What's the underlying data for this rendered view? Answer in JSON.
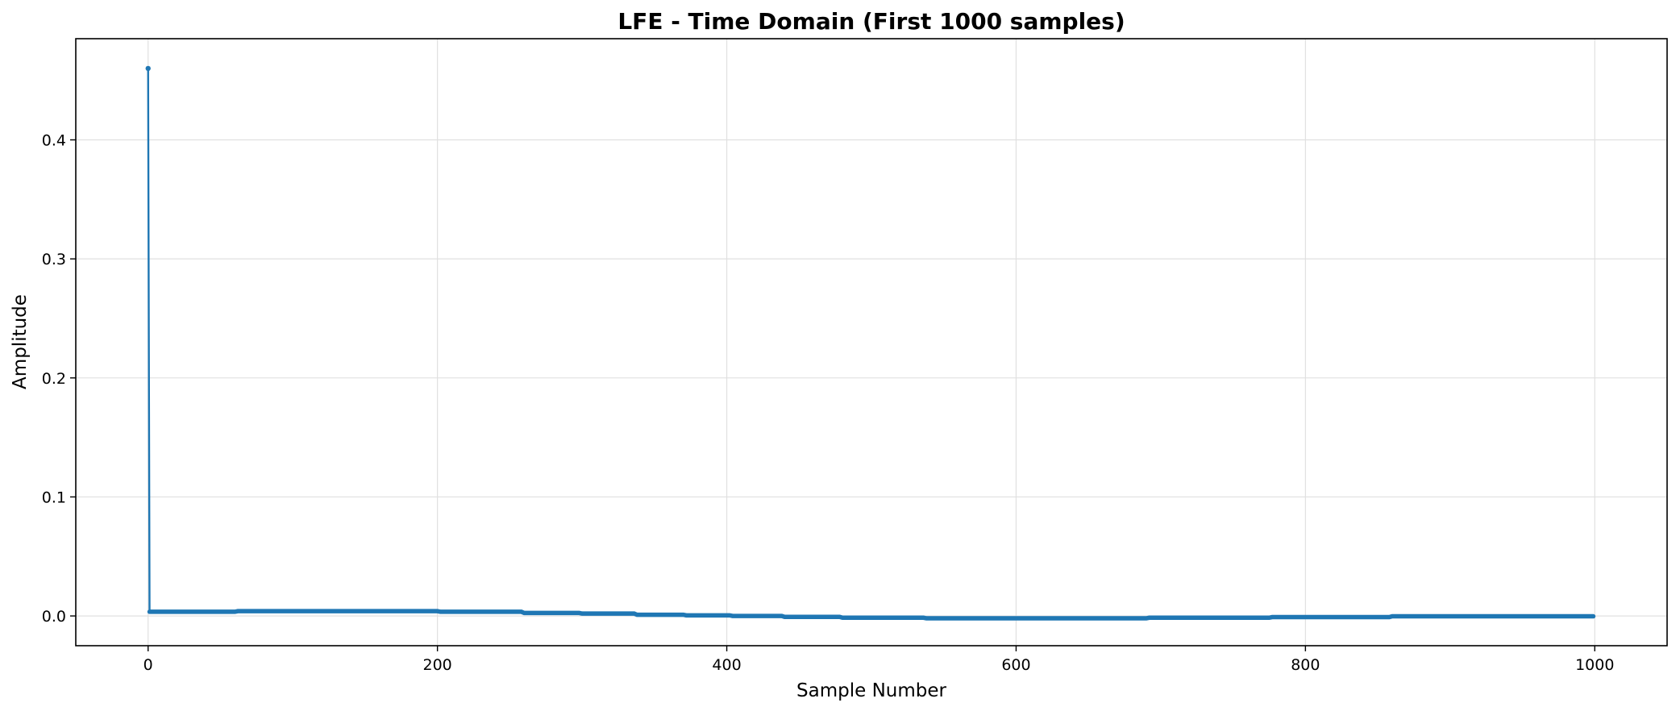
{
  "chart_data": {
    "type": "line",
    "title": "LFE - Time Domain (First 1000 samples)",
    "xlabel": "Sample Number",
    "ylabel": "Amplitude",
    "xlim": [
      -50,
      1050
    ],
    "ylim": [
      -0.025,
      0.485
    ],
    "xticks": [
      0,
      200,
      400,
      600,
      800,
      1000
    ],
    "yticks": [
      0.0,
      0.1,
      0.2,
      0.3,
      0.4
    ],
    "xtick_labels": [
      "0",
      "200",
      "400",
      "600",
      "800",
      "1000"
    ],
    "ytick_labels": [
      "0.0",
      "0.1",
      "0.2",
      "0.3",
      "0.4"
    ],
    "grid": true,
    "line_color": "#1f77b4",
    "series": [
      {
        "marker": "point",
        "x": [
          0,
          1,
          60,
          62,
          200,
          202,
          258,
          260,
          298,
          300,
          336,
          338,
          370,
          372,
          402,
          404,
          438,
          440,
          478,
          480,
          536,
          538,
          690,
          692,
          775,
          777,
          858,
          860,
          999
        ],
        "y": [
          0.46,
          0.0035,
          0.0035,
          0.004,
          0.004,
          0.0035,
          0.0035,
          0.0025,
          0.0025,
          0.002,
          0.002,
          0.001,
          0.001,
          0.0005,
          0.0005,
          0.0,
          0.0,
          -0.0008,
          -0.0008,
          -0.0015,
          -0.0015,
          -0.002,
          -0.002,
          -0.0015,
          -0.0015,
          -0.001,
          -0.001,
          -0.0003,
          -0.0003
        ]
      }
    ]
  }
}
